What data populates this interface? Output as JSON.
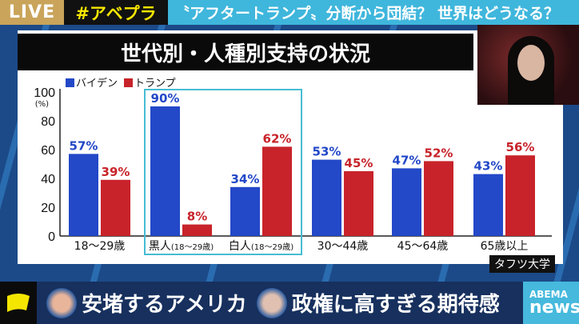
{
  "topbar": {
    "live": "LIVE",
    "hashtag": "#アベプラ",
    "headline": "〝アフタートランプ〟分断から団結？ 世界はどうなる？"
  },
  "chart_data": {
    "type": "bar",
    "title": "世代別・人種別支持の状況",
    "ylabel": "(%)",
    "ylim": [
      0,
      100
    ],
    "yticks": [
      "0",
      "20",
      "40",
      "60",
      "80",
      "100"
    ],
    "categories": [
      "18〜29歳",
      "黒人(18〜29歳)",
      "白人(18〜29歳)",
      "30〜44歳",
      "45〜64歳",
      "65歳以上"
    ],
    "category_parts": [
      [
        "18〜29歳",
        ""
      ],
      [
        "黒人",
        "(18〜29歳)"
      ],
      [
        "白人",
        "(18〜29歳)"
      ],
      [
        "30〜44歳",
        ""
      ],
      [
        "45〜64歳",
        ""
      ],
      [
        "65歳以上",
        ""
      ]
    ],
    "series": [
      {
        "name": "バイデン",
        "color": "#2348c8",
        "values": [
          57,
          90,
          34,
          53,
          47,
          43
        ],
        "labels": [
          "57%",
          "90%",
          "34%",
          "53%",
          "47%",
          "43%"
        ]
      },
      {
        "name": "トランプ",
        "color": "#c8232a",
        "values": [
          39,
          8,
          62,
          45,
          52,
          56
        ],
        "labels": [
          "39%",
          "8%",
          "62%",
          "45%",
          "52%",
          "56%"
        ]
      }
    ],
    "legend": "top-left",
    "grid": false,
    "highlight": "黒人・白人(18〜29歳)",
    "source": "タフツ大学"
  },
  "bottom": {
    "caption1": "安堵するアメリカ",
    "caption2": "政権に高すぎる期待感",
    "logo_top": "ABEMA",
    "logo_bottom": "news"
  }
}
